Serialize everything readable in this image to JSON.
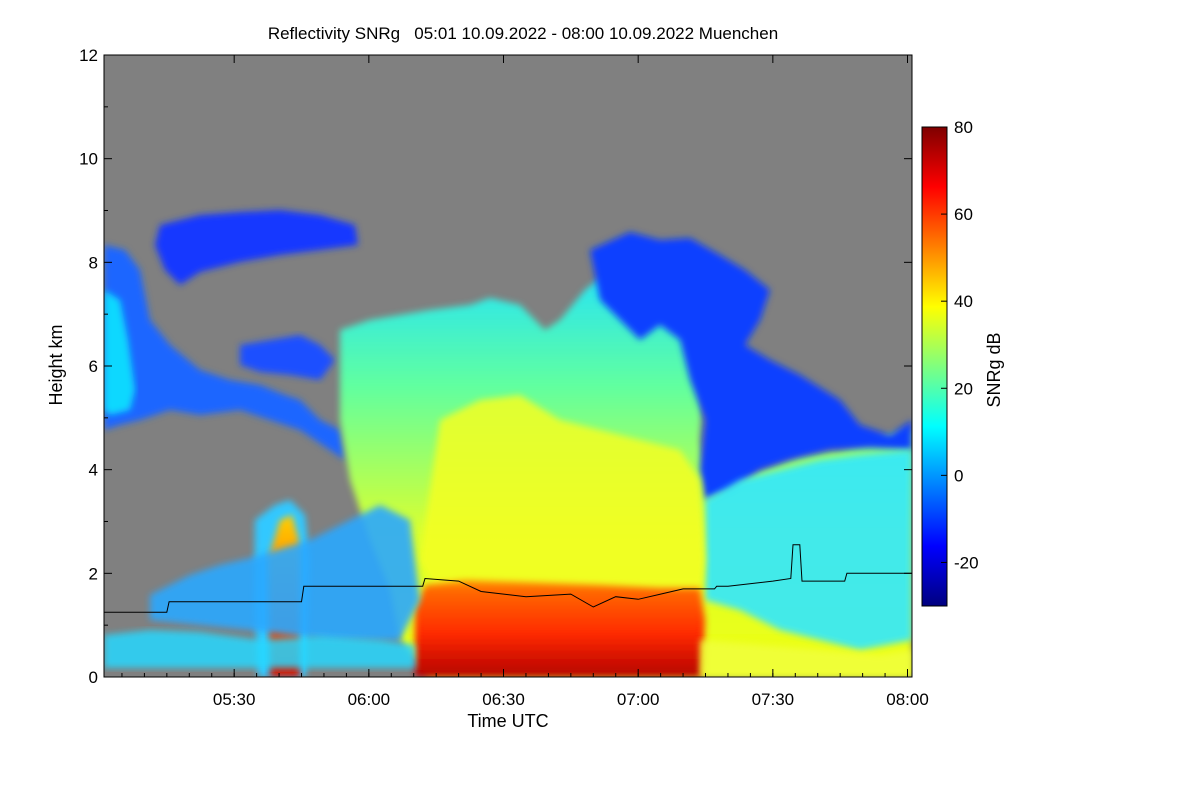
{
  "chart_data": {
    "type": "heatmap",
    "title": "Reflectivity SNRg   05:01 10.09.2022 - 08:00 10.09.2022 Muenchen",
    "xlabel": "Time UTC",
    "ylabel": "Height km",
    "colorbar_label": "SNRg dB",
    "x_ticks": [
      "05:30",
      "06:00",
      "06:30",
      "07:00",
      "07:30",
      "08:00"
    ],
    "x_tick_minutes": [
      330,
      360,
      390,
      420,
      450,
      480
    ],
    "xlim_minutes": [
      301,
      481
    ],
    "y_ticks": [
      "0",
      "2",
      "4",
      "6",
      "8",
      "10",
      "12"
    ],
    "ylim": [
      0,
      12
    ],
    "colorbar_ticks": [
      "-20",
      "0",
      "20",
      "40",
      "60",
      "80"
    ],
    "colorbar_range": [
      -30,
      80
    ],
    "background_color": "#808080",
    "colorscale": [
      "#00007f",
      "#0000ff",
      "#007fff",
      "#00ffff",
      "#7fff7f",
      "#ffff00",
      "#ff7f00",
      "#ff0000",
      "#7f0000"
    ],
    "line_series": {
      "color": "#000000",
      "points": [
        [
          301,
          1.25
        ],
        [
          315,
          1.25
        ],
        [
          315.5,
          1.45
        ],
        [
          345,
          1.45
        ],
        [
          345.5,
          1.75
        ],
        [
          372,
          1.75
        ],
        [
          372.5,
          1.9
        ],
        [
          380,
          1.85
        ],
        [
          385,
          1.65
        ],
        [
          395,
          1.55
        ],
        [
          405,
          1.6
        ],
        [
          410,
          1.35
        ],
        [
          415,
          1.55
        ],
        [
          420,
          1.5
        ],
        [
          425,
          1.6
        ],
        [
          430,
          1.7
        ],
        [
          437,
          1.7
        ],
        [
          437.5,
          1.75
        ],
        [
          440,
          1.75
        ],
        [
          450,
          1.85
        ],
        [
          454,
          1.9
        ],
        [
          454.5,
          2.55
        ],
        [
          456,
          2.55
        ],
        [
          456.5,
          1.85
        ],
        [
          466,
          1.85
        ],
        [
          466.5,
          2.0
        ],
        [
          481,
          2.0
        ]
      ]
    }
  }
}
